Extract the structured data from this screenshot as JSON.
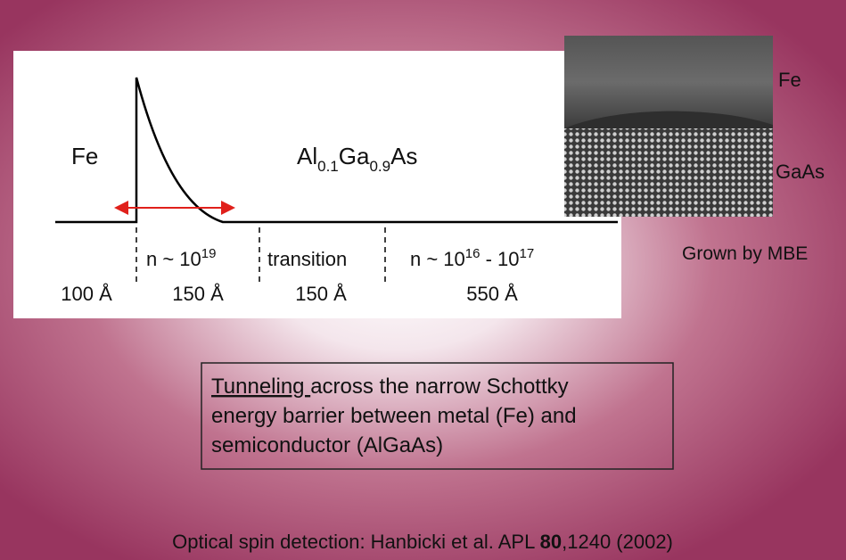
{
  "diagram": {
    "metal": "Fe",
    "material": [
      "Al",
      "0.1",
      "Ga",
      "0.9",
      "As"
    ],
    "regions": [
      {
        "doping": null,
        "width": "100 Å"
      },
      {
        "doping": [
          "n ~ 10",
          "19"
        ],
        "width": "150 Å"
      },
      {
        "doping": [
          "transition"
        ],
        "width": "150 Å"
      },
      {
        "doping": [
          "n ~ 10",
          "16",
          " - 10",
          "17"
        ],
        "width": "550 Å"
      }
    ]
  },
  "image": {
    "top_label": "Fe",
    "bottom_label": "GaAs",
    "caption": "Grown by MBE"
  },
  "box": {
    "underlined": "Tunneling ",
    "lines": [
      "across the narrow Schottky",
      "energy barrier between metal (Fe) and",
      "semiconductor (AlGaAs)"
    ]
  },
  "footer": {
    "parts": [
      "Optical spin detection: Hanbicki et al. APL ",
      "80",
      ",1240 (2002)"
    ]
  }
}
